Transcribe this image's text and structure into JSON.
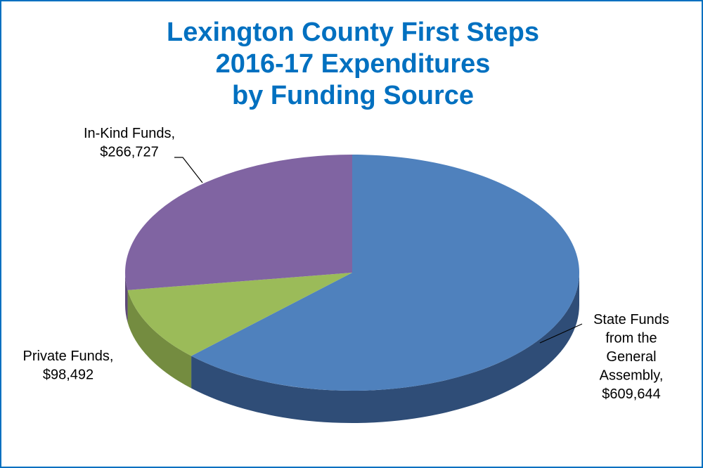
{
  "chart_data": {
    "type": "pie",
    "title_lines": [
      "Lexington County First Steps",
      "2016-17 Expenditures",
      "by Funding Source"
    ],
    "slices": [
      {
        "label_lines": [
          "State Funds",
          "from the",
          "General",
          "Assembly,",
          "$609,644"
        ],
        "value": 609644,
        "top_color": "#4f81bd",
        "side_color": "#2f4d77"
      },
      {
        "label_lines": [
          "Private Funds,",
          "$98,492"
        ],
        "value": 98492,
        "top_color": "#9bbb59",
        "side_color": "#748c40"
      },
      {
        "label_lines": [
          "In-Kind Funds,",
          "$266,727"
        ],
        "value": 266727,
        "top_color": "#8064a2",
        "side_color": "#5d4878"
      }
    ]
  }
}
